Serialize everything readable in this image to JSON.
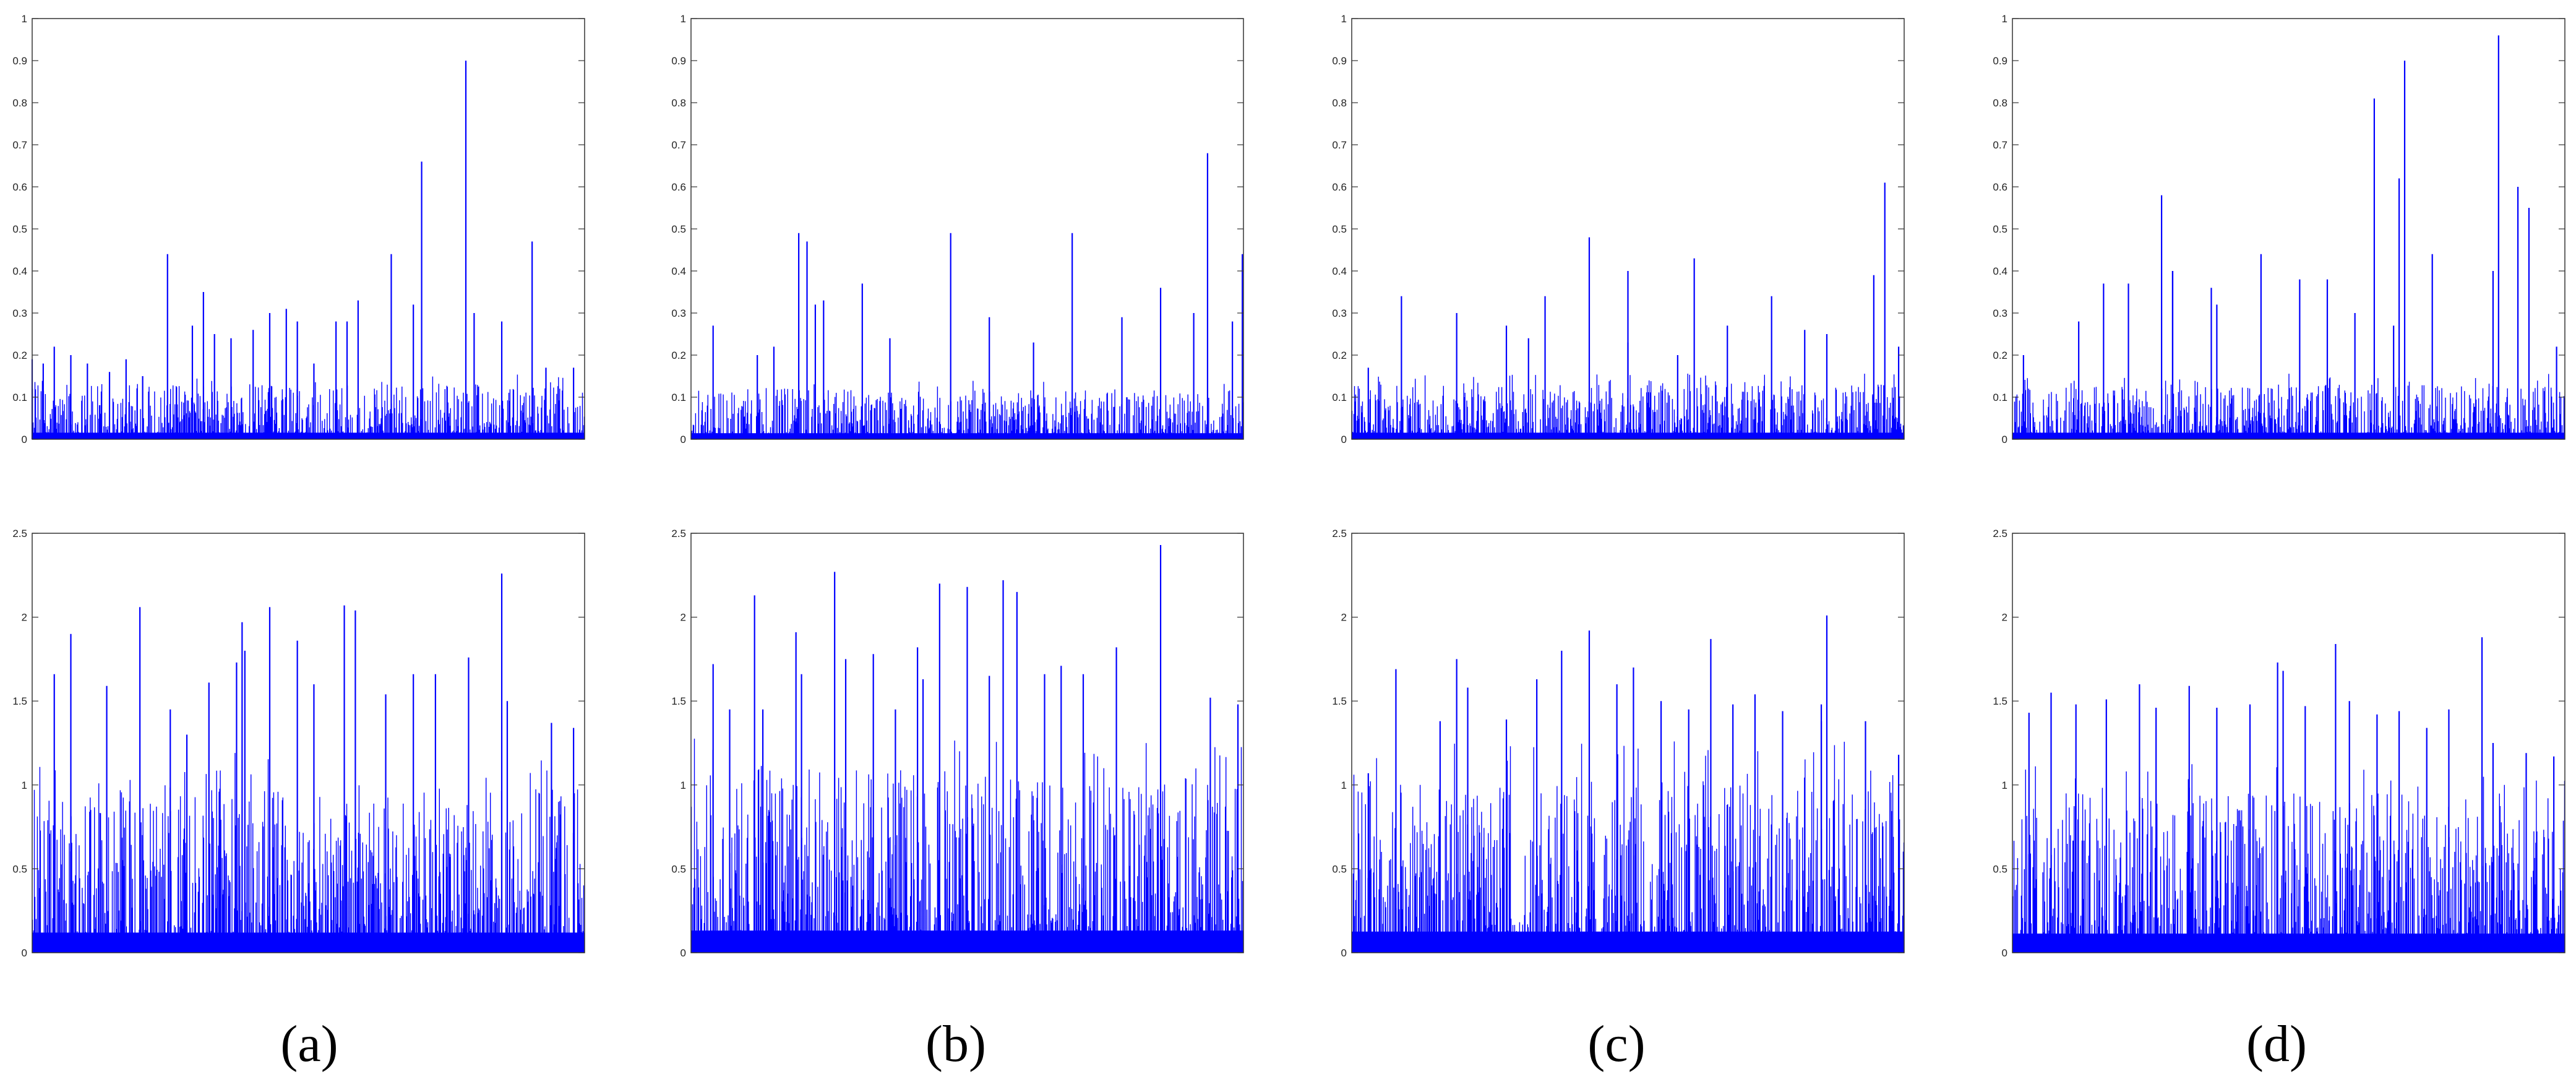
{
  "figure": {
    "captions": [
      "(a)",
      "(b)",
      "(c)",
      "(d)"
    ],
    "line_color": "#0000ff",
    "axis_color": "#333333"
  },
  "chart_data": [
    {
      "type": "bar",
      "panel": "(a)",
      "row": "top",
      "ylim": [
        0,
        1
      ],
      "yticks": [
        "0",
        "0.1",
        "0.2",
        "0.3",
        "0.4",
        "0.5",
        "0.6",
        "0.7",
        "0.8",
        "0.9",
        "1"
      ],
      "xlim": [
        0,
        1
      ],
      "peaks": [
        [
          0.0,
          0.19
        ],
        [
          0.02,
          0.18
        ],
        [
          0.04,
          0.22
        ],
        [
          0.07,
          0.2
        ],
        [
          0.1,
          0.18
        ],
        [
          0.14,
          0.16
        ],
        [
          0.17,
          0.19
        ],
        [
          0.2,
          0.15
        ],
        [
          0.245,
          0.44
        ],
        [
          0.29,
          0.27
        ],
        [
          0.31,
          0.35
        ],
        [
          0.33,
          0.25
        ],
        [
          0.36,
          0.24
        ],
        [
          0.4,
          0.26
        ],
        [
          0.43,
          0.3
        ],
        [
          0.46,
          0.31
        ],
        [
          0.48,
          0.28
        ],
        [
          0.51,
          0.18
        ],
        [
          0.55,
          0.28
        ],
        [
          0.57,
          0.28
        ],
        [
          0.59,
          0.33
        ],
        [
          0.65,
          0.44
        ],
        [
          0.69,
          0.32
        ],
        [
          0.705,
          0.66
        ],
        [
          0.785,
          0.9
        ],
        [
          0.8,
          0.3
        ],
        [
          0.85,
          0.28
        ],
        [
          0.905,
          0.47
        ],
        [
          0.93,
          0.17
        ],
        [
          0.98,
          0.17
        ]
      ],
      "noise_max": 0.13
    },
    {
      "type": "bar",
      "panel": "(b)",
      "row": "top",
      "ylim": [
        0,
        1
      ],
      "yticks": [
        "0",
        "0.1",
        "0.2",
        "0.3",
        "0.4",
        "0.5",
        "0.6",
        "0.7",
        "0.8",
        "0.9",
        "1"
      ],
      "xlim": [
        0,
        1
      ],
      "peaks": [
        [
          0.04,
          0.27
        ],
        [
          0.12,
          0.2
        ],
        [
          0.15,
          0.22
        ],
        [
          0.195,
          0.49
        ],
        [
          0.21,
          0.47
        ],
        [
          0.225,
          0.32
        ],
        [
          0.24,
          0.33
        ],
        [
          0.31,
          0.37
        ],
        [
          0.36,
          0.24
        ],
        [
          0.47,
          0.49
        ],
        [
          0.54,
          0.29
        ],
        [
          0.62,
          0.23
        ],
        [
          0.69,
          0.49
        ],
        [
          0.78,
          0.29
        ],
        [
          0.85,
          0.36
        ],
        [
          0.91,
          0.3
        ],
        [
          0.935,
          0.68
        ],
        [
          0.98,
          0.28
        ],
        [
          0.998,
          0.44
        ]
      ],
      "noise_max": 0.12
    },
    {
      "type": "bar",
      "panel": "(c)",
      "row": "top",
      "ylim": [
        0,
        1
      ],
      "yticks": [
        "0",
        "0.1",
        "0.2",
        "0.3",
        "0.4",
        "0.5",
        "0.6",
        "0.7",
        "0.8",
        "0.9",
        "1"
      ],
      "xlim": [
        0,
        1
      ],
      "peaks": [
        [
          0.03,
          0.17
        ],
        [
          0.09,
          0.34
        ],
        [
          0.19,
          0.3
        ],
        [
          0.28,
          0.27
        ],
        [
          0.32,
          0.24
        ],
        [
          0.35,
          0.34
        ],
        [
          0.43,
          0.48
        ],
        [
          0.5,
          0.23
        ],
        [
          0.5,
          0.4
        ],
        [
          0.59,
          0.2
        ],
        [
          0.62,
          0.43
        ],
        [
          0.68,
          0.27
        ],
        [
          0.76,
          0.34
        ],
        [
          0.82,
          0.26
        ],
        [
          0.86,
          0.25
        ],
        [
          0.945,
          0.39
        ],
        [
          0.965,
          0.61
        ],
        [
          0.99,
          0.22
        ]
      ],
      "noise_max": 0.13
    },
    {
      "type": "bar",
      "panel": "(d)",
      "row": "top",
      "ylim": [
        0,
        1
      ],
      "yticks": [
        "0",
        "0.1",
        "0.2",
        "0.3",
        "0.4",
        "0.5",
        "0.6",
        "0.7",
        "0.8",
        "0.9",
        "1"
      ],
      "xlim": [
        0,
        1
      ],
      "peaks": [
        [
          0.02,
          0.2
        ],
        [
          0.12,
          0.28
        ],
        [
          0.165,
          0.37
        ],
        [
          0.21,
          0.37
        ],
        [
          0.27,
          0.58
        ],
        [
          0.29,
          0.4
        ],
        [
          0.29,
          0.4
        ],
        [
          0.36,
          0.36
        ],
        [
          0.37,
          0.32
        ],
        [
          0.45,
          0.44
        ],
        [
          0.52,
          0.38
        ],
        [
          0.57,
          0.38
        ],
        [
          0.62,
          0.3
        ],
        [
          0.655,
          0.81
        ],
        [
          0.69,
          0.27
        ],
        [
          0.7,
          0.62
        ],
        [
          0.71,
          0.9
        ],
        [
          0.76,
          0.44
        ],
        [
          0.87,
          0.4
        ],
        [
          0.88,
          0.96
        ],
        [
          0.915,
          0.6
        ],
        [
          0.935,
          0.55
        ],
        [
          0.985,
          0.22
        ]
      ],
      "noise_max": 0.13
    },
    {
      "type": "bar",
      "panel": "(a)",
      "row": "bottom",
      "ylim": [
        0,
        2.5
      ],
      "yticks": [
        "0",
        "0.5",
        "1",
        "1.5",
        "2",
        "2.5"
      ],
      "xlim": [
        0,
        1
      ],
      "peaks": [
        [
          0.04,
          1.66
        ],
        [
          0.07,
          1.9
        ],
        [
          0.135,
          1.59
        ],
        [
          0.195,
          2.06
        ],
        [
          0.25,
          1.45
        ],
        [
          0.28,
          1.3
        ],
        [
          0.32,
          1.61
        ],
        [
          0.37,
          1.73
        ],
        [
          0.38,
          1.97
        ],
        [
          0.385,
          1.8
        ],
        [
          0.43,
          2.06
        ],
        [
          0.48,
          1.86
        ],
        [
          0.51,
          1.6
        ],
        [
          0.565,
          2.07
        ],
        [
          0.585,
          2.04
        ],
        [
          0.64,
          1.54
        ],
        [
          0.69,
          1.66
        ],
        [
          0.73,
          1.66
        ],
        [
          0.79,
          1.76
        ],
        [
          0.85,
          2.26
        ],
        [
          0.86,
          1.5
        ],
        [
          0.94,
          1.37
        ],
        [
          0.98,
          1.34
        ]
      ],
      "noise_max": 1.0
    },
    {
      "type": "bar",
      "panel": "(b)",
      "row": "bottom",
      "ylim": [
        0,
        2.5
      ],
      "yticks": [
        "0",
        "0.5",
        "1",
        "1.5",
        "2",
        "2.5"
      ],
      "xlim": [
        0,
        1
      ],
      "peaks": [
        [
          0.04,
          1.72
        ],
        [
          0.07,
          1.45
        ],
        [
          0.115,
          2.13
        ],
        [
          0.13,
          1.45
        ],
        [
          0.19,
          1.91
        ],
        [
          0.2,
          1.66
        ],
        [
          0.26,
          2.27
        ],
        [
          0.28,
          1.75
        ],
        [
          0.33,
          1.78
        ],
        [
          0.37,
          1.45
        ],
        [
          0.41,
          1.82
        ],
        [
          0.42,
          1.63
        ],
        [
          0.45,
          2.2
        ],
        [
          0.5,
          2.18
        ],
        [
          0.54,
          1.65
        ],
        [
          0.565,
          2.22
        ],
        [
          0.59,
          2.15
        ],
        [
          0.64,
          1.66
        ],
        [
          0.67,
          1.71
        ],
        [
          0.71,
          1.66
        ],
        [
          0.77,
          1.82
        ],
        [
          0.85,
          2.43
        ],
        [
          0.94,
          1.52
        ],
        [
          0.99,
          1.48
        ]
      ],
      "noise_max": 1.1
    },
    {
      "type": "bar",
      "panel": "(c)",
      "row": "bottom",
      "ylim": [
        0,
        2.5
      ],
      "yticks": [
        "0",
        "0.5",
        "1",
        "1.5",
        "2",
        "2.5"
      ],
      "xlim": [
        0,
        1
      ],
      "peaks": [
        [
          0.03,
          1.07
        ],
        [
          0.08,
          1.69
        ],
        [
          0.16,
          1.38
        ],
        [
          0.19,
          1.75
        ],
        [
          0.21,
          1.58
        ],
        [
          0.28,
          1.39
        ],
        [
          0.335,
          1.63
        ],
        [
          0.38,
          1.8
        ],
        [
          0.43,
          1.92
        ],
        [
          0.48,
          1.6
        ],
        [
          0.51,
          1.7
        ],
        [
          0.56,
          1.5
        ],
        [
          0.61,
          1.45
        ],
        [
          0.65,
          1.87
        ],
        [
          0.69,
          1.48
        ],
        [
          0.73,
          1.54
        ],
        [
          0.78,
          1.44
        ],
        [
          0.85,
          1.48
        ],
        [
          0.85,
          1.38
        ],
        [
          0.86,
          2.01
        ],
        [
          0.93,
          1.38
        ],
        [
          0.99,
          1.18
        ]
      ],
      "noise_max": 1.05
    },
    {
      "type": "bar",
      "panel": "(d)",
      "row": "bottom",
      "ylim": [
        0,
        2.5
      ],
      "yticks": [
        "0",
        "0.5",
        "1",
        "1.5",
        "2",
        "2.5"
      ],
      "xlim": [
        0,
        1
      ],
      "peaks": [
        [
          0.03,
          1.43
        ],
        [
          0.07,
          1.55
        ],
        [
          0.115,
          1.48
        ],
        [
          0.17,
          1.51
        ],
        [
          0.23,
          1.6
        ],
        [
          0.26,
          1.46
        ],
        [
          0.32,
          1.59
        ],
        [
          0.37,
          1.46
        ],
        [
          0.43,
          1.48
        ],
        [
          0.48,
          1.73
        ],
        [
          0.49,
          1.68
        ],
        [
          0.53,
          1.47
        ],
        [
          0.585,
          1.84
        ],
        [
          0.61,
          1.5
        ],
        [
          0.66,
          1.42
        ],
        [
          0.7,
          1.44
        ],
        [
          0.75,
          1.34
        ],
        [
          0.79,
          1.45
        ],
        [
          0.85,
          1.88
        ],
        [
          0.87,
          1.25
        ],
        [
          0.93,
          1.19
        ],
        [
          0.98,
          1.17
        ]
      ],
      "noise_max": 0.95
    }
  ]
}
